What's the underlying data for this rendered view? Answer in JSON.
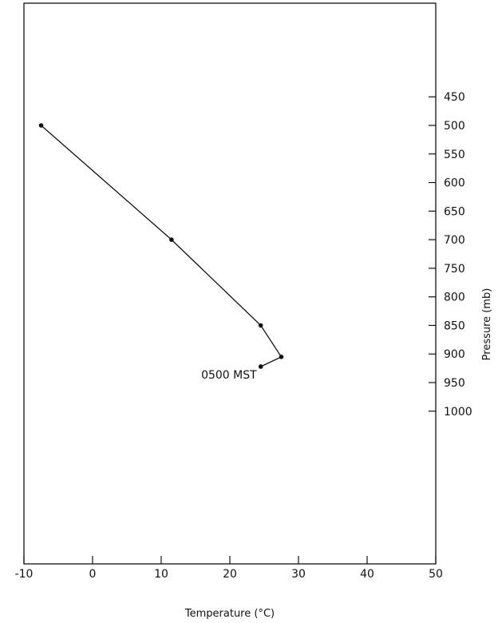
{
  "chart_data": {
    "type": "line",
    "title": "",
    "xlabel": "Temperature (°C)",
    "ylabel": "Pressure (mb)",
    "xlim": [
      -10,
      50
    ],
    "ylim": [
      1050,
      400
    ],
    "x_ticks": [
      -10,
      0,
      10,
      20,
      30,
      40,
      50
    ],
    "x_tick_labels": [
      "-10",
      "0",
      "10",
      "20",
      "30",
      "40",
      "50"
    ],
    "y_ticks": [
      450,
      500,
      550,
      600,
      650,
      700,
      750,
      800,
      850,
      900,
      950,
      1000
    ],
    "y_tick_labels": [
      "450",
      "500",
      "550",
      "600",
      "650",
      "700",
      "750",
      "800",
      "850",
      "900",
      "950",
      "1000"
    ],
    "y_axis_side": "right",
    "grid": false,
    "series": [
      {
        "points": [
          {
            "x": -7.5,
            "y": 500
          },
          {
            "x": 11.5,
            "y": 700
          },
          {
            "x": 24.5,
            "y": 850
          },
          {
            "x": 27.5,
            "y": 905
          },
          {
            "x": 24.5,
            "y": 922
          }
        ]
      }
    ],
    "annotations": [
      {
        "text": "0500 MST",
        "x": 24.5,
        "y": 922
      }
    ]
  }
}
